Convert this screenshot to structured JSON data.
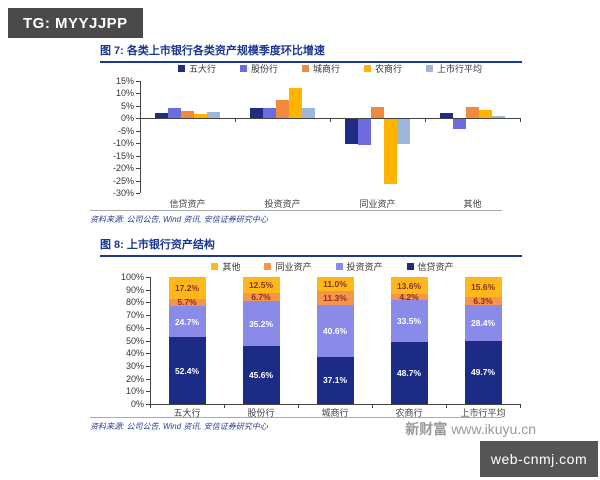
{
  "badge": {
    "text": "TG: MYYJJPP"
  },
  "footer_badge": {
    "text": "web-cnmj.com"
  },
  "watermark": {
    "brand": "新财富",
    "url": "www.ikuyu.cn"
  },
  "colors": {
    "title_blue": "#1c3794",
    "navy": "#1f2c83",
    "purple_fig7": "#6c6ce0",
    "purple_fig8": "#8a8ae8",
    "orange": "#f08a3c",
    "gold": "#ffb400",
    "light_blue": "#9cb6dc",
    "segment_label_dark": "#8b2e1f",
    "badge_gray": "#4a4a4a"
  },
  "chart_data": [
    {
      "id": "fig7",
      "type": "bar",
      "title": "图 7: 各类上市银行各类资产规模季度环比增速",
      "categories": [
        "信贷资产",
        "投资资产",
        "同业资产",
        "其他"
      ],
      "series": [
        {
          "name": "五大行",
          "color": "#1f2c83",
          "values": [
            2.3,
            4.0,
            -10.0,
            2.0
          ]
        },
        {
          "name": "股份行",
          "color": "#6c6ce0",
          "values": [
            4.2,
            4.0,
            -10.5,
            -4.0
          ]
        },
        {
          "name": "城商行",
          "color": "#f08a3c",
          "values": [
            2.9,
            7.5,
            4.5,
            4.5
          ]
        },
        {
          "name": "农商行",
          "color": "#ffb400",
          "values": [
            1.6,
            12.0,
            -26.0,
            3.5
          ]
        },
        {
          "name": "上市行平均",
          "color": "#9cb6dc",
          "values": [
            2.6,
            4.2,
            -9.8,
            1.0
          ]
        }
      ],
      "legend": [
        {
          "label": "五大行",
          "color": "#1f2c83"
        },
        {
          "label": "股份行",
          "color": "#6c6ce0"
        },
        {
          "label": "城商行",
          "color": "#f08a3c"
        },
        {
          "label": "农商行",
          "color": "#ffb400"
        },
        {
          "label": "上市行平均",
          "color": "#9cb6dc"
        }
      ],
      "ylim": [
        -30,
        15
      ],
      "ytick_step": 5,
      "grid": false,
      "source": "资料来源: 公司公告, Wind 资讯, 安信证券研究中心"
    },
    {
      "id": "fig8",
      "type": "stacked-bar",
      "title": "图 8: 上市银行资产结构",
      "categories": [
        "五大行",
        "股份行",
        "城商行",
        "农商行",
        "上市行平均"
      ],
      "series": [
        {
          "name": "信贷资产",
          "color": "#1c2b85",
          "label_color": "#ffffff",
          "values": [
            52.4,
            45.6,
            37.1,
            48.7,
            49.7
          ]
        },
        {
          "name": "投资资产",
          "color": "#8a8ae8",
          "label_color": "#ffffff",
          "values": [
            24.7,
            35.2,
            40.6,
            33.5,
            28.4
          ]
        },
        {
          "name": "同业资产",
          "color": "#f5944a",
          "label_color": "#8b2e1f",
          "values": [
            5.7,
            6.7,
            11.3,
            4.2,
            6.3
          ]
        },
        {
          "name": "其他",
          "color": "#ffb81c",
          "label_color": "#8b2e1f",
          "values": [
            17.2,
            12.5,
            11.0,
            13.6,
            15.6
          ]
        }
      ],
      "legend": [
        {
          "label": "其他",
          "color": "#ffb81c"
        },
        {
          "label": "同业资产",
          "color": "#f5944a"
        },
        {
          "label": "投资资产",
          "color": "#8a8ae8"
        },
        {
          "label": "信贷资产",
          "color": "#1c2b85"
        }
      ],
      "ylim": [
        0,
        100
      ],
      "ytick_step": 10,
      "grid": false,
      "source": "资料来源: 公司公告, Wind 资讯, 安信证券研究中心"
    }
  ]
}
